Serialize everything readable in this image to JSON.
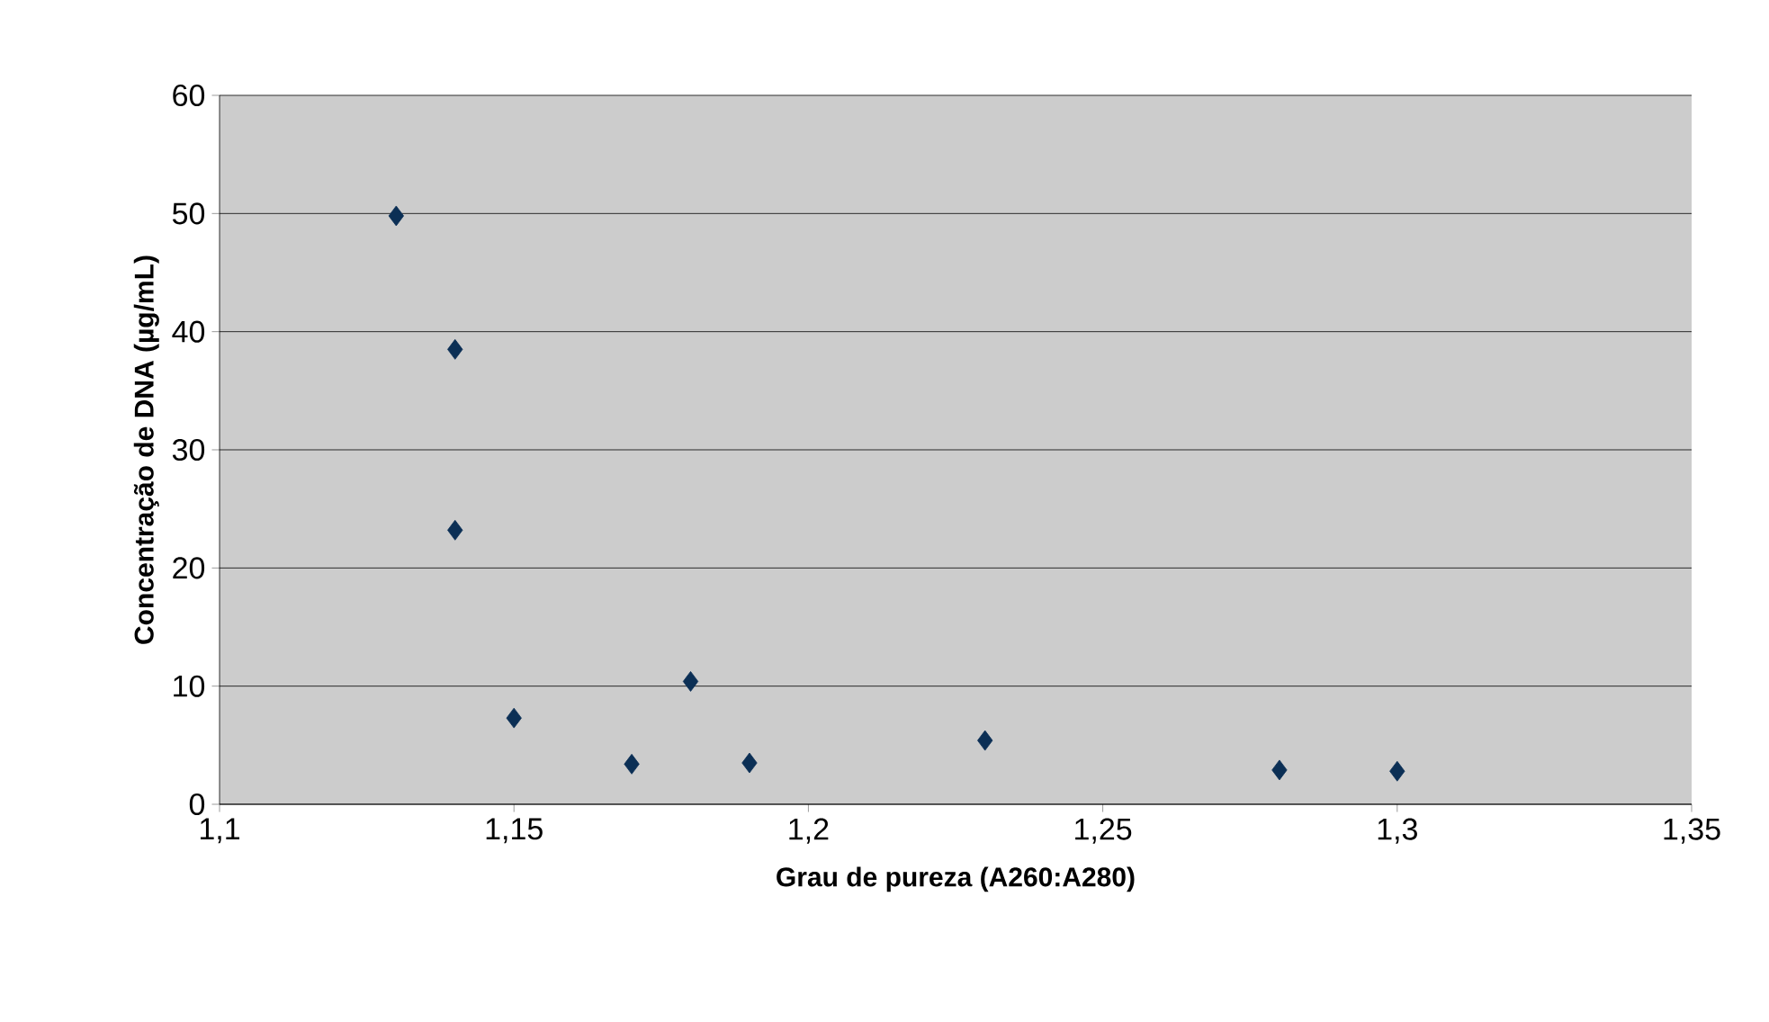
{
  "chart_data": {
    "type": "scatter",
    "xlabel": "Grau de pureza (A260:A280)",
    "ylabel": "Concentração de DNA (µg/mL)",
    "x": [
      1.13,
      1.14,
      1.14,
      1.15,
      1.17,
      1.18,
      1.19,
      1.23,
      1.28,
      1.3
    ],
    "values": [
      49.8,
      38.5,
      23.2,
      7.3,
      3.4,
      10.4,
      3.5,
      5.4,
      2.9,
      2.8
    ],
    "color": "#0b2f55",
    "marker": "diamond",
    "grid": "y",
    "xlim": [
      1.1,
      1.35
    ],
    "ylim": [
      0,
      60
    ],
    "xticks": [
      {
        "value": 1.1,
        "label": "1,1"
      },
      {
        "value": 1.15,
        "label": "1,15"
      },
      {
        "value": 1.2,
        "label": "1,2"
      },
      {
        "value": 1.25,
        "label": "1,25"
      },
      {
        "value": 1.3,
        "label": "1,3"
      },
      {
        "value": 1.35,
        "label": "1,35"
      }
    ],
    "yticks": [
      0,
      10,
      20,
      30,
      40,
      50,
      60
    ]
  }
}
